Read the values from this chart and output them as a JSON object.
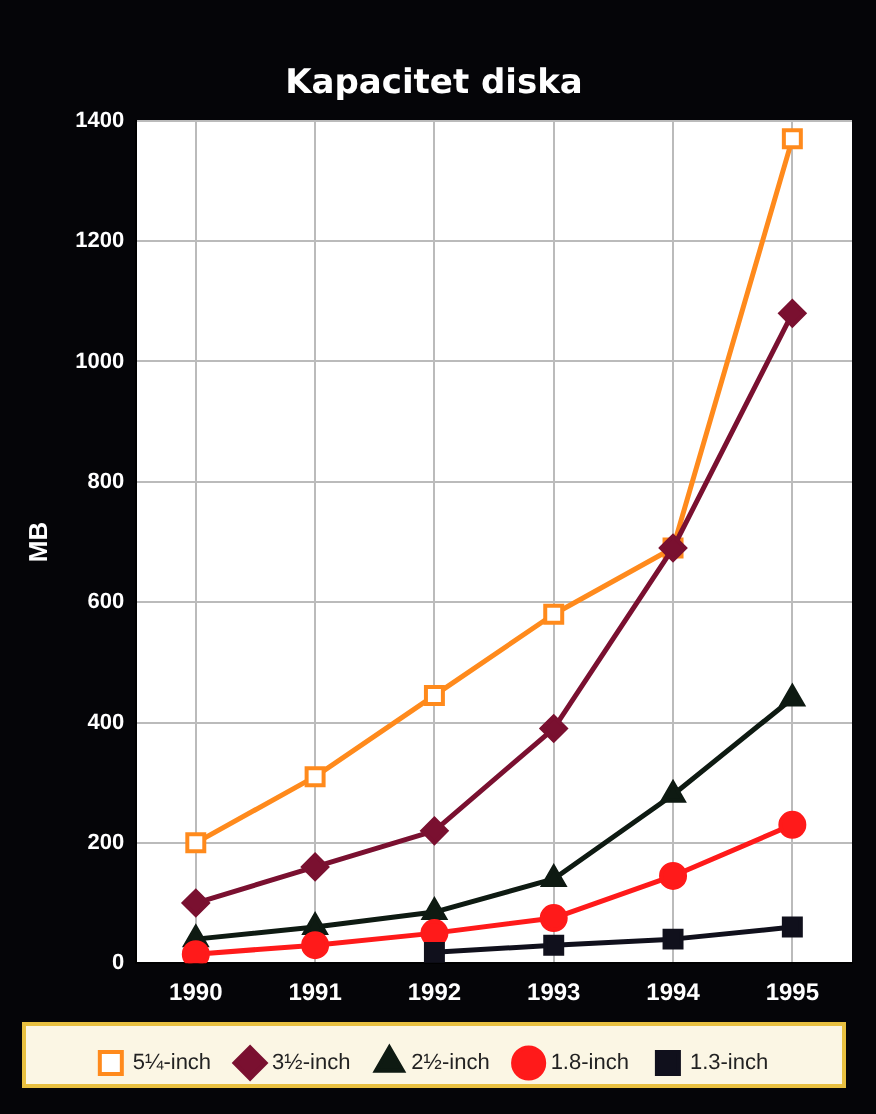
{
  "chart_data": {
    "type": "line",
    "title": "Kapacitet diska",
    "ylabel": "MB",
    "categories": [
      "1990",
      "1991",
      "1992",
      "1993",
      "1994",
      "1995"
    ],
    "series": [
      {
        "name": "5¼-inch",
        "color": "#ff8a1c",
        "marker": "square",
        "values": [
          200,
          310,
          445,
          580,
          690,
          1370
        ]
      },
      {
        "name": "3½-inch",
        "color": "#7a1030",
        "marker": "diamond",
        "values": [
          100,
          160,
          220,
          390,
          690,
          1080
        ]
      },
      {
        "name": "2½-inch",
        "color": "#0e1a12",
        "marker": "triangle",
        "values": [
          40,
          60,
          85,
          140,
          280,
          440
        ]
      },
      {
        "name": "1.8-inch",
        "color": "#ff1a1a",
        "marker": "circle",
        "values": [
          15,
          30,
          50,
          75,
          145,
          230
        ]
      },
      {
        "name": "1.3-inch",
        "color": "#10101c",
        "marker": "square",
        "values": [
          null,
          null,
          18,
          30,
          40,
          60
        ]
      }
    ],
    "ylim": [
      0,
      1400
    ],
    "yticks": [
      0,
      200,
      400,
      600,
      800,
      1000,
      1200,
      1400
    ],
    "grid": true,
    "legend": "bottom",
    "line_style": "solid"
  }
}
